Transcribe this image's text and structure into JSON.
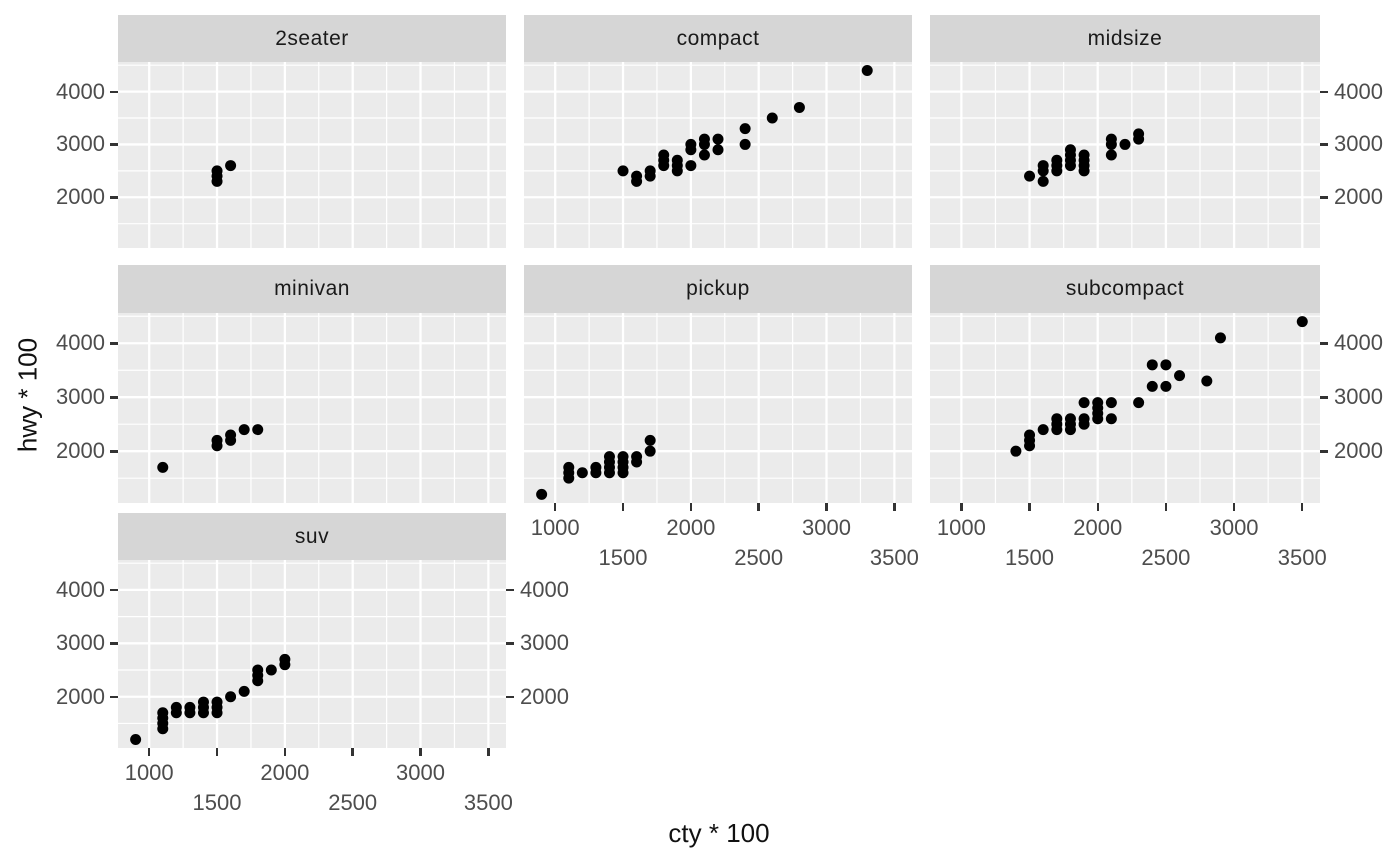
{
  "chart_data": {
    "type": "scatter",
    "title": "",
    "xlabel": "cty * 100",
    "ylabel": "hwy * 100",
    "facet_variable_values": [
      "2seater",
      "compact",
      "midsize",
      "minivan",
      "pickup",
      "subcompact",
      "suv"
    ],
    "x_ticks": [
      1000,
      1500,
      2000,
      2500,
      3000,
      3500
    ],
    "y_ticks": [
      2000,
      3000,
      4000
    ],
    "x_minor_gridlines": [
      1250,
      1750,
      2250,
      2750,
      3250
    ],
    "y_minor_gridlines": [
      1500,
      2500,
      3500,
      4500
    ],
    "xlim": [
      770,
      3630
    ],
    "ylim": [
      1040,
      4560
    ],
    "grid": "on",
    "legend_position": "none",
    "x_tick_label_layout": "staggered-two-rows",
    "facets": [
      {
        "label": "2seater",
        "axis_left": true,
        "axis_right": false,
        "axis_bottom": false,
        "points": [
          [
            1500,
            2300
          ],
          [
            1500,
            2400
          ],
          [
            1500,
            2500
          ],
          [
            1600,
            2600
          ]
        ]
      },
      {
        "label": "compact",
        "axis_left": false,
        "axis_right": false,
        "axis_bottom": false,
        "points": [
          [
            1500,
            2500
          ],
          [
            1600,
            2300
          ],
          [
            1600,
            2400
          ],
          [
            1700,
            2400
          ],
          [
            1700,
            2500
          ],
          [
            1800,
            2600
          ],
          [
            1800,
            2700
          ],
          [
            1800,
            2800
          ],
          [
            1900,
            2500
          ],
          [
            1900,
            2600
          ],
          [
            1900,
            2700
          ],
          [
            2000,
            2600
          ],
          [
            2000,
            2900
          ],
          [
            2000,
            3000
          ],
          [
            2100,
            2800
          ],
          [
            2100,
            3000
          ],
          [
            2100,
            3100
          ],
          [
            2200,
            2900
          ],
          [
            2200,
            3100
          ],
          [
            2400,
            3000
          ],
          [
            2400,
            3300
          ],
          [
            2600,
            3500
          ],
          [
            2800,
            3700
          ],
          [
            3300,
            4400
          ]
        ]
      },
      {
        "label": "midsize",
        "axis_left": false,
        "axis_right": true,
        "axis_bottom": false,
        "points": [
          [
            1500,
            2400
          ],
          [
            1600,
            2300
          ],
          [
            1600,
            2500
          ],
          [
            1600,
            2600
          ],
          [
            1700,
            2500
          ],
          [
            1700,
            2600
          ],
          [
            1700,
            2700
          ],
          [
            1800,
            2600
          ],
          [
            1800,
            2700
          ],
          [
            1800,
            2800
          ],
          [
            1800,
            2900
          ],
          [
            1900,
            2500
          ],
          [
            1900,
            2600
          ],
          [
            1900,
            2700
          ],
          [
            1900,
            2800
          ],
          [
            2100,
            2800
          ],
          [
            2100,
            3000
          ],
          [
            2100,
            3100
          ],
          [
            2200,
            3000
          ],
          [
            2300,
            3100
          ],
          [
            2300,
            3200
          ]
        ]
      },
      {
        "label": "minivan",
        "axis_left": true,
        "axis_right": false,
        "axis_bottom": false,
        "points": [
          [
            1100,
            1700
          ],
          [
            1500,
            2100
          ],
          [
            1500,
            2200
          ],
          [
            1600,
            2200
          ],
          [
            1600,
            2300
          ],
          [
            1700,
            2400
          ],
          [
            1800,
            2400
          ]
        ]
      },
      {
        "label": "pickup",
        "axis_left": false,
        "axis_right": false,
        "axis_bottom": true,
        "points": [
          [
            900,
            1200
          ],
          [
            1100,
            1500
          ],
          [
            1100,
            1600
          ],
          [
            1100,
            1700
          ],
          [
            1200,
            1600
          ],
          [
            1300,
            1600
          ],
          [
            1300,
            1700
          ],
          [
            1400,
            1600
          ],
          [
            1400,
            1700
          ],
          [
            1400,
            1800
          ],
          [
            1400,
            1900
          ],
          [
            1500,
            1600
          ],
          [
            1500,
            1700
          ],
          [
            1500,
            1800
          ],
          [
            1500,
            1900
          ],
          [
            1600,
            1800
          ],
          [
            1600,
            1900
          ],
          [
            1700,
            2000
          ],
          [
            1700,
            2200
          ]
        ]
      },
      {
        "label": "subcompact",
        "axis_left": false,
        "axis_right": true,
        "axis_bottom": true,
        "points": [
          [
            1400,
            2000
          ],
          [
            1500,
            2100
          ],
          [
            1500,
            2200
          ],
          [
            1500,
            2300
          ],
          [
            1600,
            2400
          ],
          [
            1700,
            2400
          ],
          [
            1700,
            2500
          ],
          [
            1700,
            2600
          ],
          [
            1800,
            2400
          ],
          [
            1800,
            2500
          ],
          [
            1800,
            2600
          ],
          [
            1900,
            2500
          ],
          [
            1900,
            2600
          ],
          [
            1900,
            2900
          ],
          [
            2000,
            2600
          ],
          [
            2000,
            2700
          ],
          [
            2000,
            2800
          ],
          [
            2000,
            2900
          ],
          [
            2100,
            2600
          ],
          [
            2100,
            2900
          ],
          [
            2300,
            2900
          ],
          [
            2400,
            3200
          ],
          [
            2400,
            3600
          ],
          [
            2500,
            3200
          ],
          [
            2500,
            3600
          ],
          [
            2600,
            3400
          ],
          [
            2800,
            3300
          ],
          [
            2900,
            4100
          ],
          [
            3500,
            4400
          ]
        ]
      },
      {
        "label": "suv",
        "axis_left": true,
        "axis_right": true,
        "axis_bottom": true,
        "points": [
          [
            900,
            1200
          ],
          [
            1100,
            1400
          ],
          [
            1100,
            1500
          ],
          [
            1100,
            1600
          ],
          [
            1100,
            1700
          ],
          [
            1200,
            1700
          ],
          [
            1200,
            1800
          ],
          [
            1300,
            1700
          ],
          [
            1300,
            1800
          ],
          [
            1400,
            1700
          ],
          [
            1400,
            1800
          ],
          [
            1400,
            1900
          ],
          [
            1500,
            1700
          ],
          [
            1500,
            1800
          ],
          [
            1500,
            1900
          ],
          [
            1600,
            2000
          ],
          [
            1700,
            2100
          ],
          [
            1800,
            2300
          ],
          [
            1800,
            2400
          ],
          [
            1800,
            2500
          ],
          [
            1900,
            2500
          ],
          [
            2000,
            2600
          ],
          [
            2000,
            2700
          ]
        ]
      }
    ],
    "style": {
      "page_bg": "#ffffff",
      "panel_bg": "#ebebeb",
      "strip_bg": "#d6d6d6",
      "grid_color": "#ffffff",
      "point_color": "#000000",
      "tick_label_color": "#4d4d4d",
      "tick_mark_color": "#333333",
      "strip_text_color": "#1a1a1a",
      "axis_title_color": "#111111"
    }
  }
}
